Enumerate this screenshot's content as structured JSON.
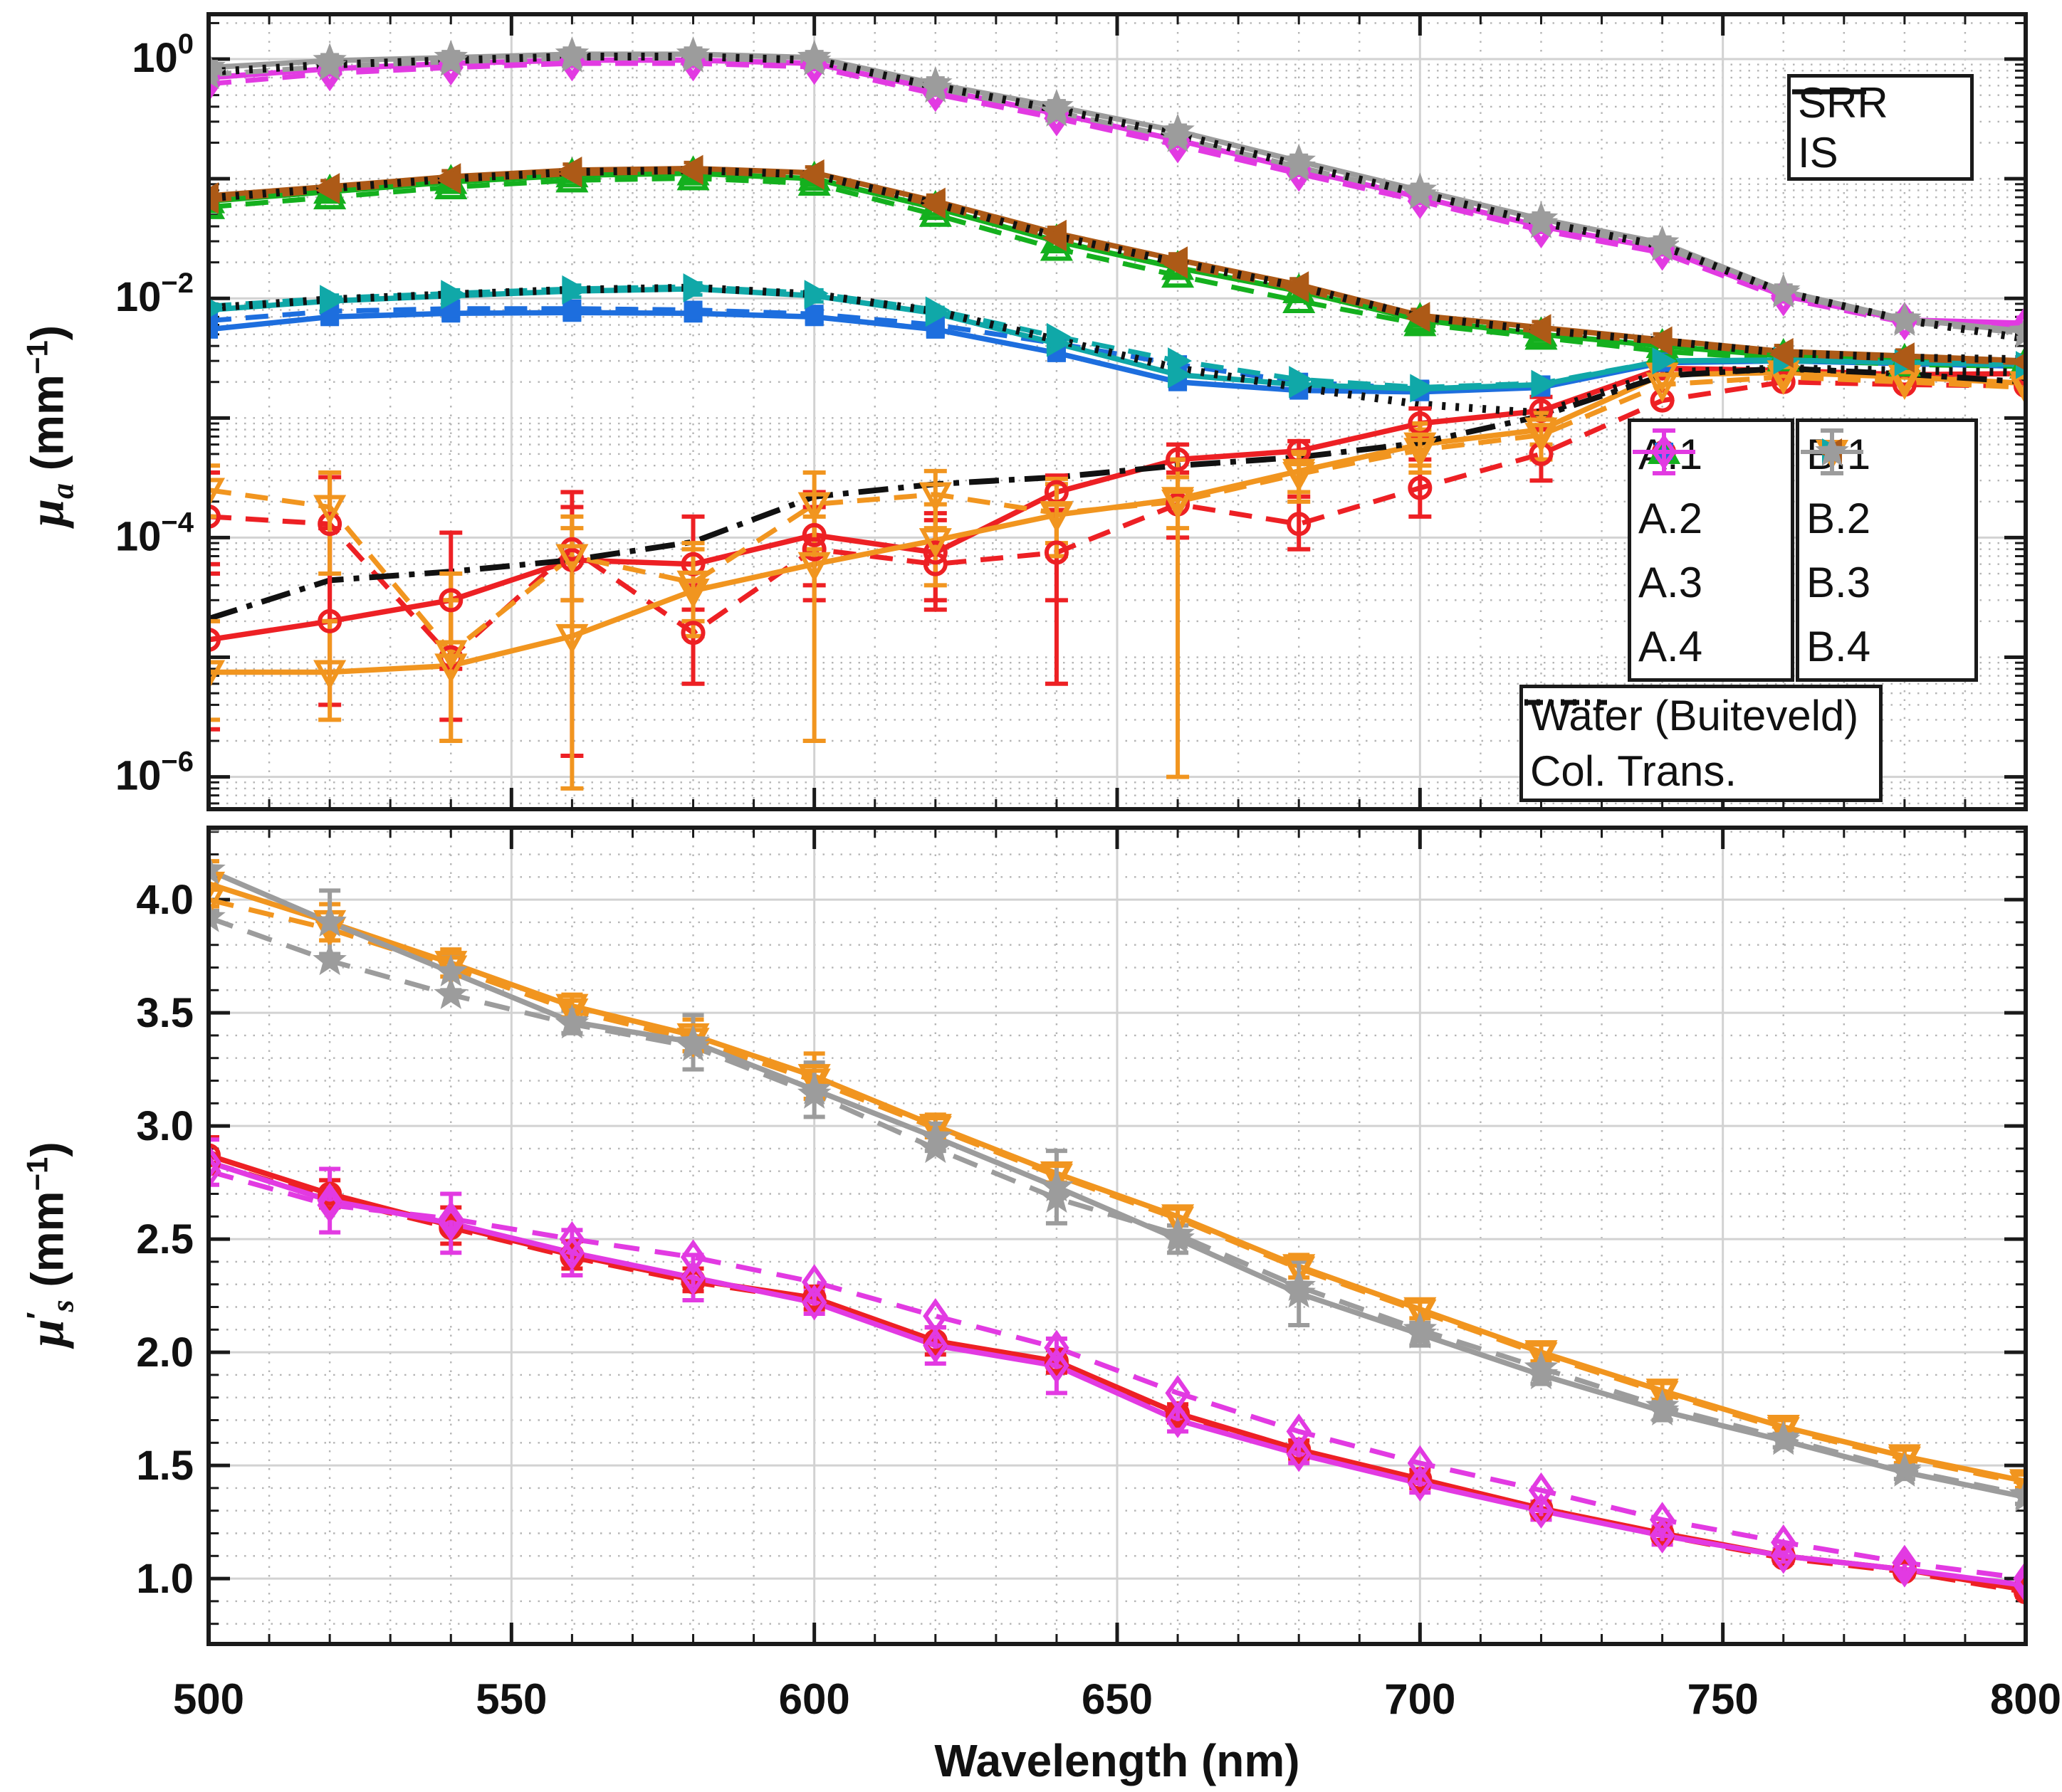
{
  "axes": {
    "x": {
      "label": "Wavelength (nm)",
      "tick_values": [
        500,
        550,
        600,
        650,
        700,
        750,
        800
      ],
      "tick_labels": [
        "500",
        "550",
        "600",
        "650",
        "700",
        "750",
        "800"
      ],
      "minor_step": 10,
      "xlim": [
        500,
        800
      ]
    },
    "top_y": {
      "label_mu": "μ",
      "label_sub": "a",
      "label_unit_open": " (mm",
      "label_unit_sup": "−1",
      "label_unit_close": ")",
      "tick_base": "10",
      "tick_exponents": [
        "0",
        "−2",
        "−4",
        "−6"
      ],
      "tick_decades": [
        0,
        -2,
        -4,
        -6
      ],
      "ylim_log10": [
        -6.27,
        0.375
      ]
    },
    "bottom_y": {
      "label_mu": "μ",
      "label_prime": "′",
      "label_sub": "s",
      "label_unit_open": " (mm",
      "label_unit_sup": "−1",
      "label_unit_close": ")",
      "tick_values": [
        1.0,
        1.5,
        2.0,
        2.5,
        3.0,
        3.5,
        4.0
      ],
      "tick_labels": [
        "1.0",
        "1.5",
        "2.0",
        "2.5",
        "3.0",
        "3.5",
        "4.0"
      ],
      "minor_step": 0.1,
      "ylim": [
        0.711,
        4.318
      ]
    }
  },
  "legends": {
    "line_style": [
      {
        "label": "SRR",
        "style": "solid"
      },
      {
        "label": "IS",
        "style": "dashed"
      }
    ],
    "group_a": [
      {
        "label": "A.1",
        "series": "A.1"
      },
      {
        "label": "A.2",
        "series": "A.2"
      },
      {
        "label": "A.3",
        "series": "A.3"
      },
      {
        "label": "A.4",
        "series": "A.4"
      }
    ],
    "group_b": [
      {
        "label": "B.1",
        "series": "B.1"
      },
      {
        "label": "B.2",
        "series": "B.2"
      },
      {
        "label": "B.3",
        "series": "B.3"
      },
      {
        "label": "B.4",
        "series": "B.4"
      }
    ],
    "reference": [
      {
        "label": "Water (Buiteveld)",
        "style": "dashdot"
      },
      {
        "label": "Col. Trans.",
        "style": "dotted"
      }
    ]
  },
  "chart_data": [
    {
      "type": "line",
      "name": "absorption",
      "ylabel": "mu_a (mm-1)",
      "yscale": "log",
      "x": [
        500,
        520,
        540,
        560,
        580,
        600,
        620,
        640,
        660,
        680,
        700,
        720,
        740,
        760,
        780,
        800
      ],
      "series": [
        {
          "name": "A.1",
          "color": "#ed2024",
          "marker": "circle",
          "filled": false,
          "srr": [
            1.4e-05,
            2e-05,
            3e-05,
            6.5e-05,
            6e-05,
            0.000105,
            7.5e-05,
            0.00024,
            0.00045,
            0.00053,
            0.0009,
            0.00115,
            0.0026,
            0.0025,
            0.0023,
            0.00235
          ],
          "is": [
            0.00015,
            0.00013,
            1e-05,
            8e-05,
            1.6e-05,
            8e-05,
            6e-05,
            7.5e-05,
            0.00019,
            0.00013,
            0.00026,
            0.0005,
            0.0014,
            0.002,
            0.0019,
            0.00185
          ],
          "ebars_srr": [
            [
              0,
              2.5e-06,
              5e-05
            ],
            [
              1,
              4e-06,
              0.00012
            ],
            [
              2,
              8e-06,
              0.00011
            ],
            [
              3,
              1.5e-06,
              0.00024
            ],
            [
              4,
              2.5e-05,
              0.00015
            ],
            [
              5,
              4e-05,
              0.00024
            ],
            [
              6,
              3e-05,
              0.00016
            ],
            [
              7,
              6e-06,
              0.00033
            ],
            [
              8,
              0.00035,
              0.0006
            ],
            [
              9,
              0.00044,
              0.00064
            ],
            [
              10,
              0.0007,
              0.0012
            ],
            [
              11,
              0.00085,
              0.0015
            ],
            [
              12,
              0.0023,
              0.003
            ]
          ],
          "ebars_is": [
            [
              0,
              6e-05,
              0.00035
            ],
            [
              1,
              2e-05,
              0.00032
            ],
            [
              2,
              3e-06,
              3e-05
            ],
            [
              3,
              3e-05,
              0.00018
            ],
            [
              4,
              6e-06,
              4e-05
            ],
            [
              5,
              3e-05,
              0.00018
            ],
            [
              6,
              2.5e-05,
              0.00014
            ],
            [
              7,
              3e-05,
              0.00017
            ],
            [
              8,
              0.0001,
              0.00035
            ],
            [
              9,
              8e-05,
              0.00022
            ],
            [
              10,
              0.00015,
              0.00045
            ],
            [
              11,
              0.0003,
              0.0008
            ]
          ]
        },
        {
          "name": "A.2",
          "color": "#1d6ede",
          "marker": "square",
          "filled": true,
          "srr": [
            0.0055,
            0.007,
            0.0075,
            0.0076,
            0.0075,
            0.007,
            0.0055,
            0.0035,
            0.002,
            0.0017,
            0.00165,
            0.0018,
            0.0029,
            0.003,
            0.00285,
            0.0027
          ],
          "is": [
            0.0065,
            0.0078,
            0.0082,
            0.0082,
            0.008,
            0.0074,
            0.006,
            0.0042,
            0.0028,
            0.002,
            0.00175,
            0.0019,
            0.00295,
            0.003,
            0.00285,
            0.0027
          ]
        },
        {
          "name": "A.3",
          "color": "#14b01e",
          "marker": "triangle-up",
          "filled": false,
          "srr": [
            0.065,
            0.078,
            0.094,
            0.107,
            0.111,
            0.1,
            0.057,
            0.03,
            0.018,
            0.0115,
            0.0066,
            0.005,
            0.004,
            0.0033,
            0.003,
            0.0029
          ],
          "is": [
            0.058,
            0.07,
            0.085,
            0.097,
            0.101,
            0.091,
            0.05,
            0.026,
            0.0155,
            0.0095,
            0.0061,
            0.0047,
            0.0036,
            0.0031,
            0.0028,
            0.0027
          ]
        },
        {
          "name": "A.4",
          "color": "#e23ae2",
          "marker": "diamond",
          "filled": false,
          "srr": [
            0.7,
            0.83,
            0.92,
            0.98,
            0.98,
            0.92,
            0.56,
            0.35,
            0.21,
            0.12,
            0.07,
            0.04,
            0.026,
            0.0105,
            0.0066,
            0.0062
          ],
          "is": [
            0.62,
            0.76,
            0.85,
            0.92,
            0.92,
            0.86,
            0.51,
            0.32,
            0.19,
            0.11,
            0.065,
            0.037,
            0.024,
            0.01,
            0.0063,
            0.0058
          ]
        },
        {
          "name": "B.1",
          "color": "#f1951f",
          "marker": "triangle-down",
          "filled": false,
          "srr": [
            7.5e-06,
            7.5e-06,
            8.5e-06,
            1.5e-05,
            3.6e-05,
            6e-05,
            9.5e-05,
            0.000155,
            0.00021,
            0.00036,
            0.0006,
            0.0008,
            0.0023,
            0.0024,
            0.0022,
            0.00195
          ],
          "is": [
            0.00025,
            0.00018,
            1.1e-05,
            7e-05,
            4.2e-05,
            0.00019,
            0.00023,
            0.00016,
            0.0002,
            0.00034,
            0.00054,
            0.00072,
            0.0019,
            0.0022,
            0.002,
            0.0018
          ],
          "ebars_srr": [
            [
              0,
              3e-06,
              2e-05
            ],
            [
              1,
              3e-06,
              2e-05
            ],
            [
              2,
              2e-06,
              3e-05
            ],
            [
              3,
              8e-07,
              0.00012
            ],
            [
              4,
              1.5e-05,
              9e-05
            ],
            [
              5,
              2e-06,
              0.00015
            ],
            [
              6,
              4e-05,
              0.00019
            ],
            [
              7,
              7e-05,
              0.00031
            ],
            [
              8,
              1e-06,
              0.00045
            ],
            [
              9,
              0.00024,
              0.00052
            ],
            [
              10,
              0.0004,
              0.0009
            ],
            [
              11,
              0.0006,
              0.0011
            ]
          ],
          "ebars_is": [
            [
              0,
              0.00015,
              0.0004
            ],
            [
              1,
              5e-05,
              0.00035
            ],
            [
              2,
              2e-06,
              5e-05
            ],
            [
              3,
              3e-05,
              0.00015
            ],
            [
              4,
              2e-05,
              8e-05
            ],
            [
              5,
              8e-05,
              0.00035
            ],
            [
              6,
              0.00012,
              0.00036
            ],
            [
              7,
              9e-05,
              0.00028
            ],
            [
              8,
              0.00012,
              0.00032
            ],
            [
              9,
              0.0002,
              0.0005
            ],
            [
              10,
              0.00035,
              0.0008
            ],
            [
              11,
              0.00045,
              0.001
            ]
          ]
        },
        {
          "name": "B.2",
          "color": "#10a8a8",
          "marker": "triangle-right",
          "filled": true,
          "srr": [
            0.008,
            0.0095,
            0.0105,
            0.0115,
            0.012,
            0.0105,
            0.0075,
            0.0042,
            0.0023,
            0.0019,
            0.00175,
            0.0019,
            0.003,
            0.00305,
            0.0029,
            0.0028
          ],
          "is": [
            0.0086,
            0.01,
            0.011,
            0.012,
            0.0125,
            0.011,
            0.008,
            0.0048,
            0.003,
            0.0021,
            0.0018,
            0.00195,
            0.003,
            0.003,
            0.0029,
            0.00275
          ]
        },
        {
          "name": "B.3",
          "color": "#ad5a17",
          "marker": "triangle-left",
          "filled": true,
          "srr": [
            0.072,
            0.086,
            0.104,
            0.118,
            0.122,
            0.112,
            0.065,
            0.035,
            0.021,
            0.013,
            0.0072,
            0.0057,
            0.0045,
            0.0036,
            0.0033,
            0.003
          ],
          "is": [
            0.066,
            0.08,
            0.097,
            0.11,
            0.115,
            0.105,
            0.06,
            0.032,
            0.019,
            0.012,
            0.0068,
            0.0053,
            0.0043,
            0.0034,
            0.0031,
            0.0029
          ]
        },
        {
          "name": "B.4",
          "color": "#9c9c9c",
          "marker": "star",
          "filled": true,
          "srr": [
            0.85,
            0.97,
            1.03,
            1.1,
            1.1,
            1.03,
            0.62,
            0.4,
            0.25,
            0.14,
            0.08,
            0.046,
            0.029,
            0.0115,
            0.0067,
            0.0053
          ],
          "is": [
            0.74,
            0.87,
            0.95,
            1.02,
            1.02,
            0.96,
            0.57,
            0.36,
            0.22,
            0.125,
            0.073,
            0.042,
            0.027,
            0.011,
            0.0064,
            0.0051
          ]
        }
      ],
      "water_buiteveld": [
        2.1e-05,
        4.4e-05,
        5.2e-05,
        6.5e-05,
        9.2e-05,
        0.00022,
        0.00028,
        0.00032,
        0.0004,
        0.00047,
        0.00062,
        0.00104,
        0.00225,
        0.0026,
        0.00233,
        0.002
      ],
      "col_trans": [
        [
          0.78,
          0.9,
          0.98,
          1.05,
          1.05,
          0.98,
          0.59,
          0.38,
          0.235,
          0.13,
          0.075,
          0.043,
          0.0275,
          0.0112,
          0.0066,
          0.0046
        ],
        [
          0.069,
          0.083,
          0.1,
          0.114,
          0.118,
          0.108,
          0.062,
          0.033,
          0.02,
          0.0125,
          0.007,
          0.0054,
          0.0044,
          0.0035,
          0.0032,
          0.0031
        ],
        [
          0.0083,
          0.0098,
          0.0108,
          0.0118,
          0.0123,
          0.0108,
          0.0078,
          0.0045,
          0.0026,
          0.0018,
          0.0013,
          0.0011,
          0.0024,
          0.0026,
          0.0025,
          0.0024
        ]
      ]
    },
    {
      "type": "line",
      "name": "reduced_scattering",
      "ylabel": "mu_s' (mm-1)",
      "yscale": "linear",
      "x": [
        500,
        520,
        540,
        560,
        580,
        600,
        620,
        640,
        660,
        680,
        700,
        720,
        740,
        760,
        780,
        800
      ],
      "series": [
        {
          "name": "A.1",
          "color": "#ed2024",
          "marker": "circle",
          "filled": false,
          "srr": [
            2.87,
            2.7,
            2.56,
            2.43,
            2.32,
            2.24,
            2.05,
            1.96,
            1.73,
            1.57,
            1.44,
            1.31,
            1.2,
            1.1,
            1.04,
            0.95
          ],
          "is": [
            2.84,
            2.68,
            2.55,
            2.42,
            2.31,
            2.23,
            2.04,
            1.95,
            1.72,
            1.56,
            1.43,
            1.3,
            1.19,
            1.09,
            1.03,
            0.94
          ],
          "err": [
            0.08,
            0.06,
            0.08,
            0.06,
            0.05,
            0.05,
            0.06,
            0.05,
            0.04,
            0.04,
            0.04,
            0.03,
            0.03,
            0.03,
            0.03,
            0.03
          ]
        },
        {
          "name": "A.4",
          "color": "#e23ae2",
          "marker": "diamond",
          "filled": false,
          "srr": [
            2.84,
            2.67,
            2.57,
            2.44,
            2.33,
            2.22,
            2.03,
            1.94,
            1.7,
            1.55,
            1.42,
            1.3,
            1.19,
            1.1,
            1.04,
            0.97
          ],
          "is": [
            2.8,
            2.65,
            2.59,
            2.5,
            2.42,
            2.31,
            2.16,
            2.02,
            1.82,
            1.65,
            1.51,
            1.39,
            1.26,
            1.16,
            1.07,
            1.0
          ],
          "err": [
            0.1,
            0.14,
            0.13,
            0.1,
            0.1,
            0.05,
            0.08,
            0.12,
            0.05,
            0.04,
            0.04,
            0.04,
            0.04,
            0.03,
            0.03,
            0.03
          ]
        },
        {
          "name": "B.1",
          "color": "#f1951f",
          "marker": "triangle-down",
          "filled": false,
          "srr": [
            4.07,
            3.9,
            3.72,
            3.53,
            3.4,
            3.22,
            3.0,
            2.79,
            2.6,
            2.38,
            2.19,
            2.0,
            1.83,
            1.67,
            1.54,
            1.43
          ],
          "is": [
            4.0,
            3.87,
            3.7,
            3.51,
            3.38,
            3.2,
            2.99,
            2.78,
            2.59,
            2.37,
            2.18,
            1.99,
            1.82,
            1.66,
            1.53,
            1.42
          ],
          "err": [
            0.1,
            0.08,
            0.06,
            0.05,
            0.07,
            0.1,
            0.05,
            0.04,
            0.04,
            0.05,
            0.04,
            0.04,
            0.04,
            0.03,
            0.03,
            0.03
          ]
        },
        {
          "name": "B.4",
          "color": "#9c9c9c",
          "marker": "star",
          "filled": true,
          "srr": [
            4.13,
            3.9,
            3.68,
            3.46,
            3.37,
            3.16,
            2.95,
            2.73,
            2.5,
            2.26,
            2.08,
            1.9,
            1.74,
            1.61,
            1.47,
            1.36
          ],
          "is": [
            3.92,
            3.73,
            3.58,
            3.45,
            3.35,
            3.14,
            2.9,
            2.68,
            2.52,
            2.29,
            2.1,
            1.93,
            1.76,
            1.62,
            1.48,
            1.37
          ],
          "err": [
            0.18,
            0.14,
            0.08,
            0.05,
            0.12,
            0.12,
            0.06,
            0.16,
            0.06,
            0.14,
            0.05,
            0.04,
            0.04,
            0.03,
            0.03,
            0.03
          ]
        }
      ]
    }
  ]
}
